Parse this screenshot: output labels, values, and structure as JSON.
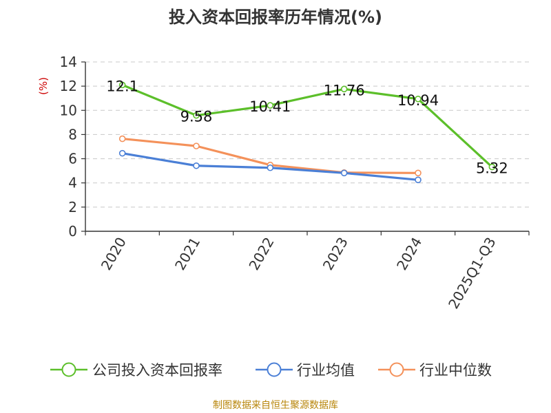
{
  "chart_data": {
    "type": "line",
    "title": "投入资本回报率历年情况(%)",
    "ylabel": "(%)",
    "xlabel": "",
    "categories": [
      "2020",
      "2021",
      "2022",
      "2023",
      "2024",
      "2025Q1-Q3"
    ],
    "ylim": [
      0,
      14
    ],
    "yticks": [
      0,
      2,
      4,
      6,
      8,
      10,
      12,
      14
    ],
    "grid": true,
    "legend_position": "bottom",
    "series": [
      {
        "name": "公司投入资本回报率",
        "color": "#5cbf2a",
        "values": [
          12.1,
          9.58,
          10.41,
          11.76,
          10.94,
          5.32
        ],
        "labels": [
          "12.1",
          "9.58",
          "10.41",
          "11.76",
          "10.94",
          "5.32"
        ]
      },
      {
        "name": "行业均值",
        "color": "#4a7fd6",
        "values": [
          6.45,
          5.42,
          5.25,
          4.82,
          4.25,
          null
        ]
      },
      {
        "name": "行业中位数",
        "color": "#f4915a",
        "values": [
          7.65,
          7.05,
          5.48,
          4.85,
          4.82,
          null
        ]
      }
    ]
  },
  "source": "制图数据来自恒生聚源数据库"
}
